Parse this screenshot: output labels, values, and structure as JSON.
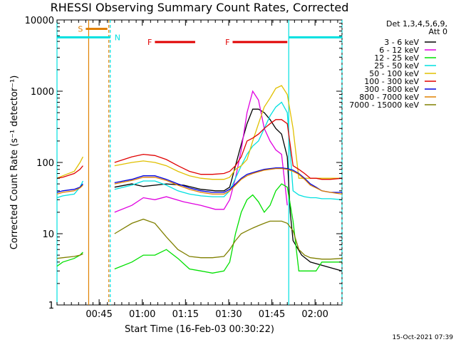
{
  "chart_data": {
    "type": "line",
    "title": "RHESSI Observing Summary Count Rates, Corrected",
    "xlabel": "Start Time (16-Feb-03 00:30:22)",
    "ylabel": "Corrected Count Rate (s⁻¹ detector⁻¹)",
    "yscale": "log",
    "ylim": [
      1,
      10000
    ],
    "xlim_minutes": [
      0,
      99
    ],
    "x_ticks": [
      {
        "label": "00:45",
        "minutes": 14.63
      },
      {
        "label": "01:00",
        "minutes": 29.63
      },
      {
        "label": "01:15",
        "minutes": 44.63
      },
      {
        "label": "01:30",
        "minutes": 59.63
      },
      {
        "label": "01:45",
        "minutes": 74.63
      },
      {
        "label": "02:00",
        "minutes": 89.63
      }
    ],
    "y_ticks": [
      {
        "label": "1",
        "value": 1
      },
      {
        "label": "10",
        "value": 10
      },
      {
        "label": "100",
        "value": 100
      },
      {
        "label": "1000",
        "value": 1000
      },
      {
        "label": "10000",
        "value": 10000
      }
    ],
    "legend_header": [
      "Det 1,3,4,5,6,9,",
      "Att 0"
    ],
    "series": [
      {
        "name": "3 - 6 keV",
        "color": "#000000",
        "x": [
          0,
          6,
          10,
          18.5,
          20,
          26,
          30,
          38,
          44,
          50,
          55,
          58,
          60,
          62,
          64,
          66,
          68,
          70,
          72,
          74,
          76,
          78,
          80,
          81,
          82,
          85,
          88,
          99
        ],
        "y": [
          null,
          null,
          null,
          null,
          45,
          50,
          46,
          50,
          48,
          42,
          40,
          40,
          45,
          90,
          180,
          350,
          560,
          560,
          500,
          400,
          300,
          250,
          120,
          20,
          8,
          5,
          4,
          3
        ]
      },
      {
        "name": "6 - 12 keV",
        "color": "#e000e0",
        "x": [
          0,
          6,
          10,
          18.5,
          20,
          26,
          30,
          34,
          38,
          44,
          50,
          55,
          58,
          60,
          62,
          64,
          66,
          68,
          70,
          72,
          74,
          76,
          78,
          80,
          82,
          85,
          88,
          99
        ],
        "y": [
          null,
          null,
          null,
          null,
          20,
          25,
          32,
          30,
          33,
          28,
          25,
          22,
          22,
          30,
          60,
          150,
          500,
          1000,
          750,
          300,
          200,
          150,
          130,
          25,
          null,
          null,
          null,
          null
        ]
      },
      {
        "name": "12 - 25 keV",
        "color": "#00e000",
        "x": [
          0,
          2,
          6,
          8,
          9,
          10,
          18.5,
          20,
          26,
          30,
          34,
          38,
          42,
          46,
          50,
          54,
          58,
          60,
          62,
          64,
          66,
          68,
          70,
          72,
          74,
          76,
          78,
          80,
          82,
          84,
          86,
          88,
          90,
          92,
          95,
          99
        ],
        "y": [
          3.5,
          4,
          4.5,
          5,
          5.5,
          null,
          null,
          3.2,
          4,
          5,
          5,
          6,
          4.5,
          3.2,
          3,
          2.8,
          3,
          4,
          10,
          20,
          30,
          35,
          28,
          20,
          25,
          40,
          50,
          45,
          15,
          3,
          3,
          3,
          3,
          4,
          4,
          4
        ]
      },
      {
        "name": "25 - 50 keV",
        "color": "#00e0e0",
        "x": [
          0,
          2,
          6,
          8,
          9,
          10,
          18.5,
          20,
          26,
          30,
          34,
          38,
          42,
          46,
          50,
          54,
          58,
          60,
          62,
          64,
          66,
          68,
          70,
          72,
          74,
          76,
          78,
          80,
          82,
          84,
          86,
          88,
          90,
          92,
          95,
          99
        ],
        "y": [
          32,
          34,
          36,
          45,
          55,
          null,
          null,
          42,
          48,
          55,
          55,
          48,
          40,
          36,
          34,
          33,
          33,
          40,
          60,
          90,
          130,
          170,
          200,
          300,
          450,
          600,
          700,
          500,
          40,
          35,
          33,
          32,
          32,
          31,
          31,
          30
        ]
      },
      {
        "name": "50 - 100 keV",
        "color": "#e0c000",
        "x": [
          0,
          2,
          6,
          8,
          9,
          10,
          18.5,
          20,
          26,
          30,
          34,
          38,
          42,
          46,
          50,
          54,
          58,
          60,
          62,
          64,
          66,
          68,
          70,
          72,
          74,
          76,
          78,
          80,
          82,
          84,
          86,
          88,
          90,
          92,
          95,
          99
        ],
        "y": [
          60,
          65,
          75,
          100,
          120,
          null,
          null,
          90,
          100,
          105,
          100,
          90,
          75,
          65,
          60,
          58,
          58,
          62,
          80,
          90,
          110,
          200,
          350,
          600,
          800,
          1100,
          1200,
          900,
          300,
          60,
          60,
          60,
          60,
          60,
          60,
          60
        ]
      },
      {
        "name": "100 - 300 keV",
        "color": "#e00000",
        "x": [
          0,
          2,
          6,
          8,
          9,
          10,
          18.5,
          20,
          26,
          30,
          34,
          38,
          42,
          46,
          50,
          54,
          58,
          60,
          62,
          64,
          66,
          68,
          70,
          72,
          74,
          76,
          78,
          80,
          82,
          84,
          86,
          88,
          90,
          92,
          95,
          99
        ],
        "y": [
          60,
          62,
          70,
          80,
          90,
          null,
          null,
          100,
          120,
          130,
          125,
          110,
          90,
          75,
          68,
          68,
          70,
          75,
          90,
          120,
          200,
          220,
          250,
          300,
          350,
          400,
          400,
          350,
          90,
          80,
          70,
          60,
          60,
          58,
          58,
          60
        ]
      },
      {
        "name": "300 - 800 keV",
        "color": "#0000e0",
        "x": [
          0,
          2,
          6,
          8,
          9,
          10,
          18.5,
          20,
          26,
          30,
          34,
          38,
          42,
          46,
          50,
          54,
          58,
          60,
          62,
          64,
          66,
          68,
          70,
          72,
          74,
          76,
          78,
          80,
          82,
          84,
          86,
          88,
          90,
          92,
          95,
          99
        ],
        "y": [
          38,
          40,
          42,
          45,
          50,
          null,
          null,
          52,
          58,
          65,
          65,
          58,
          50,
          44,
          40,
          38,
          38,
          42,
          50,
          60,
          68,
          72,
          76,
          80,
          82,
          84,
          84,
          82,
          78,
          70,
          60,
          50,
          45,
          40,
          38,
          38
        ]
      },
      {
        "name": "800 - 7000 keV",
        "color": "#e08000",
        "x": [
          0,
          2,
          6,
          8,
          9,
          10,
          18.5,
          20,
          26,
          30,
          34,
          38,
          42,
          46,
          50,
          54,
          58,
          60,
          62,
          64,
          66,
          68,
          70,
          72,
          74,
          76,
          78,
          80,
          82,
          84,
          86,
          88,
          90,
          92,
          95,
          99
        ],
        "y": [
          36,
          38,
          40,
          44,
          48,
          null,
          null,
          50,
          56,
          62,
          62,
          56,
          48,
          42,
          38,
          36,
          36,
          40,
          48,
          58,
          65,
          70,
          74,
          78,
          80,
          82,
          82,
          80,
          75,
          68,
          58,
          48,
          44,
          40,
          38,
          36
        ]
      },
      {
        "name": "7000 - 15000 keV",
        "color": "#808000",
        "x": [
          0,
          2,
          6,
          8,
          9,
          10,
          18.5,
          20,
          26,
          30,
          34,
          38,
          42,
          46,
          50,
          54,
          58,
          60,
          62,
          64,
          66,
          68,
          70,
          72,
          74,
          76,
          78,
          80,
          82,
          84,
          86,
          88,
          90,
          92,
          95,
          99
        ],
        "y": [
          4.5,
          4.6,
          4.8,
          5,
          5.2,
          null,
          null,
          10,
          14,
          16,
          14,
          9,
          6,
          4.8,
          4.6,
          4.6,
          4.8,
          6,
          8,
          10,
          11,
          12,
          13,
          14,
          15,
          15,
          15,
          14,
          11,
          6,
          5,
          4.6,
          4.5,
          4.4,
          4.4,
          4.5
        ]
      }
    ],
    "annotations": [
      {
        "label": "S",
        "color": "#e08000",
        "x_start_min": 10,
        "x_end_min": 17.5,
        "level": 7500
      },
      {
        "label": "N",
        "color": "#00e0e0",
        "x_start_min": 0,
        "x_end_min": 18.5,
        "level": 5700
      },
      {
        "label": "N",
        "color": "#00e0e0",
        "x_start_min": 80.5,
        "x_end_min": 99,
        "level": 5700
      },
      {
        "label": "F",
        "color": "#e00000",
        "x_start_min": 34,
        "x_end_min": 48,
        "level": 4900
      },
      {
        "label": "F",
        "color": "#e00000",
        "x_start_min": 61,
        "x_end_min": 80,
        "level": 4900
      }
    ],
    "vertical_markers_min": [
      {
        "color": "#00e0e0",
        "x": 0,
        "style": "solid"
      },
      {
        "color": "#e08000",
        "x": 11,
        "style": "solid"
      },
      {
        "color": "#e08000",
        "x": 18,
        "style": "dashed"
      },
      {
        "color": "#00e0e0",
        "x": 18.5,
        "style": "dashed"
      },
      {
        "color": "#00e0e0",
        "x": 80.5,
        "style": "solid"
      },
      {
        "color": "#00e0e0",
        "x": 99,
        "style": "dashed"
      }
    ],
    "timestamp": "15-Oct-2021 07:39"
  }
}
